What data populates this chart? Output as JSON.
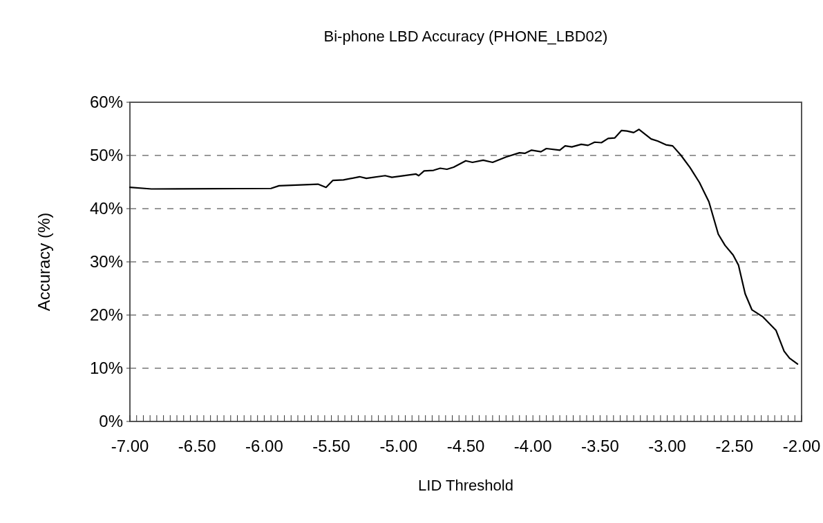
{
  "chart_data": {
    "type": "line",
    "title": "Bi-phone LBD Accuracy (PHONE_LBD02)",
    "xlabel": "LID Threshold",
    "ylabel": "Accuracy (%)",
    "xlim": [
      -7,
      -2
    ],
    "ylim": [
      0,
      60
    ],
    "grid": "y",
    "line_style": "solid",
    "marker": "none",
    "yticks": [
      {
        "value": 0,
        "label": "0%"
      },
      {
        "value": 10,
        "label": "10%"
      },
      {
        "value": 20,
        "label": "20%"
      },
      {
        "value": 30,
        "label": "30%"
      },
      {
        "value": 40,
        "label": "40%"
      },
      {
        "value": 50,
        "label": "50%"
      },
      {
        "value": 60,
        "label": "60%"
      }
    ],
    "xticks": [
      {
        "value": -7,
        "label": "-7.00"
      },
      {
        "value": -6.95,
        "label": null
      },
      {
        "value": -6.9,
        "label": null
      },
      {
        "value": -6.85,
        "label": null
      },
      {
        "value": -6.8,
        "label": null
      },
      {
        "value": -6.75,
        "label": null
      },
      {
        "value": -6.7,
        "label": null
      },
      {
        "value": -6.65,
        "label": null
      },
      {
        "value": -6.6,
        "label": null
      },
      {
        "value": -6.55,
        "label": null
      },
      {
        "value": -6.5,
        "label": "-6.50"
      },
      {
        "value": -6.45,
        "label": null
      },
      {
        "value": -6.4,
        "label": null
      },
      {
        "value": -6.35,
        "label": null
      },
      {
        "value": -6.3,
        "label": null
      },
      {
        "value": -6.25,
        "label": null
      },
      {
        "value": -6.2,
        "label": null
      },
      {
        "value": -6.15,
        "label": null
      },
      {
        "value": -6.1,
        "label": null
      },
      {
        "value": -6.05,
        "label": null
      },
      {
        "value": -6,
        "label": "-6.00"
      },
      {
        "value": -5.95,
        "label": null
      },
      {
        "value": -5.9,
        "label": null
      },
      {
        "value": -5.85,
        "label": null
      },
      {
        "value": -5.8,
        "label": null
      },
      {
        "value": -5.75,
        "label": null
      },
      {
        "value": -5.7,
        "label": null
      },
      {
        "value": -5.65,
        "label": null
      },
      {
        "value": -5.6,
        "label": null
      },
      {
        "value": -5.55,
        "label": null
      },
      {
        "value": -5.5,
        "label": "-5.50"
      },
      {
        "value": -5.45,
        "label": null
      },
      {
        "value": -5.4,
        "label": null
      },
      {
        "value": -5.35,
        "label": null
      },
      {
        "value": -5.3,
        "label": null
      },
      {
        "value": -5.25,
        "label": null
      },
      {
        "value": -5.2,
        "label": null
      },
      {
        "value": -5.15,
        "label": null
      },
      {
        "value": -5.1,
        "label": null
      },
      {
        "value": -5.05,
        "label": null
      },
      {
        "value": -5,
        "label": "-5.00"
      },
      {
        "value": -4.95,
        "label": null
      },
      {
        "value": -4.9,
        "label": null
      },
      {
        "value": -4.85,
        "label": null
      },
      {
        "value": -4.8,
        "label": null
      },
      {
        "value": -4.75,
        "label": null
      },
      {
        "value": -4.7,
        "label": null
      },
      {
        "value": -4.65,
        "label": null
      },
      {
        "value": -4.6,
        "label": null
      },
      {
        "value": -4.55,
        "label": null
      },
      {
        "value": -4.5,
        "label": "-4.50"
      },
      {
        "value": -4.45,
        "label": null
      },
      {
        "value": -4.4,
        "label": null
      },
      {
        "value": -4.35,
        "label": null
      },
      {
        "value": -4.3,
        "label": null
      },
      {
        "value": -4.25,
        "label": null
      },
      {
        "value": -4.2,
        "label": null
      },
      {
        "value": -4.15,
        "label": null
      },
      {
        "value": -4.1,
        "label": null
      },
      {
        "value": -4.05,
        "label": null
      },
      {
        "value": -4,
        "label": "-4.00"
      },
      {
        "value": -3.95,
        "label": null
      },
      {
        "value": -3.9,
        "label": null
      },
      {
        "value": -3.85,
        "label": null
      },
      {
        "value": -3.8,
        "label": null
      },
      {
        "value": -3.75,
        "label": null
      },
      {
        "value": -3.7,
        "label": null
      },
      {
        "value": -3.65,
        "label": null
      },
      {
        "value": -3.6,
        "label": null
      },
      {
        "value": -3.55,
        "label": null
      },
      {
        "value": -3.5,
        "label": "-3.50"
      },
      {
        "value": -3.45,
        "label": null
      },
      {
        "value": -3.4,
        "label": null
      },
      {
        "value": -3.35,
        "label": null
      },
      {
        "value": -3.3,
        "label": null
      },
      {
        "value": -3.25,
        "label": null
      },
      {
        "value": -3.2,
        "label": null
      },
      {
        "value": -3.15,
        "label": null
      },
      {
        "value": -3.1,
        "label": null
      },
      {
        "value": -3.05,
        "label": null
      },
      {
        "value": -3,
        "label": "-3.00"
      },
      {
        "value": -2.95,
        "label": null
      },
      {
        "value": -2.9,
        "label": null
      },
      {
        "value": -2.85,
        "label": null
      },
      {
        "value": -2.8,
        "label": null
      },
      {
        "value": -2.75,
        "label": null
      },
      {
        "value": -2.7,
        "label": null
      },
      {
        "value": -2.65,
        "label": null
      },
      {
        "value": -2.6,
        "label": null
      },
      {
        "value": -2.55,
        "label": null
      },
      {
        "value": -2.5,
        "label": "-2.50"
      },
      {
        "value": -2.45,
        "label": null
      },
      {
        "value": -2.4,
        "label": null
      },
      {
        "value": -2.35,
        "label": null
      },
      {
        "value": -2.3,
        "label": null
      },
      {
        "value": -2.25,
        "label": null
      },
      {
        "value": -2.2,
        "label": null
      },
      {
        "value": -2.15,
        "label": null
      },
      {
        "value": -2.1,
        "label": null
      },
      {
        "value": -2.05,
        "label": null
      },
      {
        "value": -2,
        "label": "-2.00"
      }
    ],
    "series": [
      {
        "color": "#000000",
        "x": [
          -7.0,
          -6.84,
          -5.95,
          -5.89,
          -5.6,
          -5.54,
          -5.49,
          -5.41,
          -5.29,
          -5.24,
          -5.1,
          -5.05,
          -4.87,
          -4.85,
          -4.81,
          -4.74,
          -4.69,
          -4.64,
          -4.59,
          -4.5,
          -4.45,
          -4.37,
          -4.3,
          -4.2,
          -4.1,
          -4.06,
          -4.01,
          -3.94,
          -3.9,
          -3.8,
          -3.76,
          -3.71,
          -3.64,
          -3.59,
          -3.54,
          -3.49,
          -3.44,
          -3.39,
          -3.34,
          -3.3,
          -3.25,
          -3.21,
          -3.12,
          -3.07,
          -3.01,
          -2.96,
          -2.9,
          -2.83,
          -2.76,
          -2.69,
          -2.62,
          -2.57,
          -2.51,
          -2.47,
          -2.42,
          -2.37,
          -2.29,
          -2.19,
          -2.13,
          -2.09,
          -2.03
        ],
        "values": [
          44.0,
          43.7,
          43.8,
          44.3,
          44.6,
          44.0,
          45.3,
          45.4,
          46.0,
          45.7,
          46.2,
          45.9,
          46.5,
          46.2,
          47.1,
          47.2,
          47.6,
          47.4,
          47.8,
          49.0,
          48.7,
          49.1,
          48.7,
          49.7,
          50.5,
          50.4,
          51.0,
          50.7,
          51.3,
          51.0,
          51.8,
          51.6,
          52.1,
          51.9,
          52.5,
          52.4,
          53.2,
          53.3,
          54.7,
          54.6,
          54.3,
          54.9,
          53.1,
          52.7,
          52.0,
          51.8,
          50.1,
          47.7,
          44.9,
          41.3,
          35.2,
          33.1,
          31.3,
          29.4,
          24.0,
          21.0,
          19.7,
          17.1,
          13.2,
          11.9,
          10.8
        ]
      }
    ]
  }
}
